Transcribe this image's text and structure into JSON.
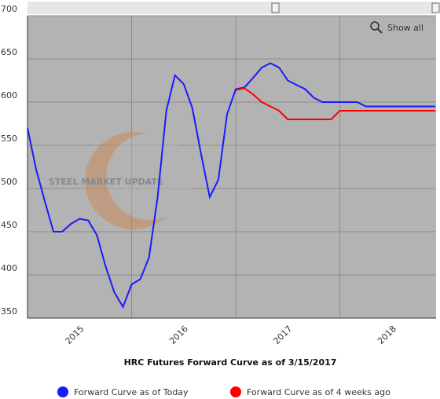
{
  "chart_data": {
    "type": "line",
    "title": "HRC Futures Forward Curve as of 3/15/2017",
    "watermark": "STEEL MARKET UPDATE",
    "button": "Show all",
    "categories": [
      null,
      null,
      null,
      null,
      null,
      null,
      "2015",
      null,
      null,
      null,
      null,
      null,
      null,
      null,
      null,
      null,
      null,
      null,
      "2016",
      null,
      null,
      null,
      null,
      null,
      null,
      null,
      null,
      null,
      null,
      null,
      "2017",
      null,
      null,
      null,
      null,
      null,
      null,
      null,
      null,
      null,
      null,
      null,
      "2018",
      null,
      null,
      null,
      null,
      null
    ],
    "series": [
      {
        "name": "Forward Curve as of Today",
        "color": "#1a1aff",
        "values": [
          570,
          522,
          485,
          450,
          450,
          459,
          465,
          463,
          446,
          410,
          380,
          363,
          389,
          395,
          420,
          490,
          590,
          631,
          621,
          593,
          540,
          490,
          510,
          586,
          615,
          617,
          628,
          640,
          645,
          640,
          625,
          620,
          615,
          605,
          600,
          600,
          600,
          600,
          600,
          595,
          595,
          595,
          595,
          595,
          595,
          595,
          595,
          595
        ]
      },
      {
        "name": "Forward Curve as of 4 weeks ago",
        "color": "#ff0000",
        "values": [
          null,
          null,
          null,
          null,
          null,
          null,
          null,
          null,
          null,
          null,
          null,
          null,
          null,
          null,
          null,
          null,
          null,
          null,
          null,
          null,
          null,
          null,
          null,
          null,
          614,
          616,
          609,
          600,
          595,
          590,
          580,
          580,
          580,
          580,
          580,
          580,
          590,
          590,
          590,
          590,
          590,
          590,
          590,
          590,
          590,
          590,
          590,
          590
        ]
      }
    ],
    "ylim": [
      350,
      700
    ],
    "yticks": [
      350,
      400,
      450,
      500,
      550,
      600,
      650,
      700
    ],
    "grid": true
  }
}
